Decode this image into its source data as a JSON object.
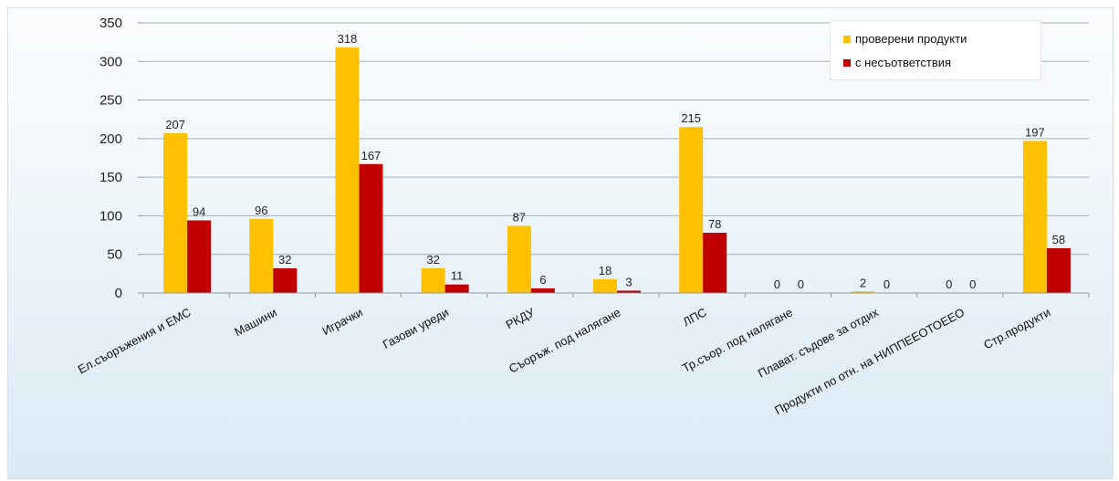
{
  "chart_data": {
    "type": "bar",
    "categories": [
      "Ел.съоръжения и EMC",
      "Машини",
      "Играчки",
      "Газови уреди",
      "РКДУ",
      "Съоръж. под налягане",
      "ЛПС",
      "Тр.съор. под налягане",
      "Плават. съдове за отдих",
      "Продукти по отн. на НИППЕЕОТОЕЕО",
      "Стр.продукти"
    ],
    "series": [
      {
        "name": "проверени продукти",
        "values": [
          207,
          96,
          318,
          32,
          87,
          18,
          215,
          0,
          2,
          0,
          197
        ],
        "color": "#ffc000"
      },
      {
        "name": "с несъответствия",
        "values": [
          94,
          32,
          167,
          11,
          6,
          3,
          78,
          0,
          0,
          0,
          58
        ],
        "color": "#c00000"
      }
    ],
    "data_labels": [
      [
        "207",
        "96",
        "318",
        "32",
        "87",
        "18",
        "215",
        "0",
        "2",
        "0",
        "197"
      ],
      [
        "94",
        "32",
        "167",
        "11",
        "6",
        "3",
        "78",
        "0",
        "0",
        "0",
        "58"
      ]
    ],
    "ylim": [
      0,
      350
    ],
    "yticks": [
      0,
      50,
      100,
      150,
      200,
      250,
      300,
      350
    ],
    "ytick_labels": [
      "0",
      "50",
      "100",
      "150",
      "200",
      "250",
      "300",
      "350"
    ],
    "grid": true,
    "legend_position": "top-right",
    "title": "",
    "xlabel": "",
    "ylabel": ""
  }
}
